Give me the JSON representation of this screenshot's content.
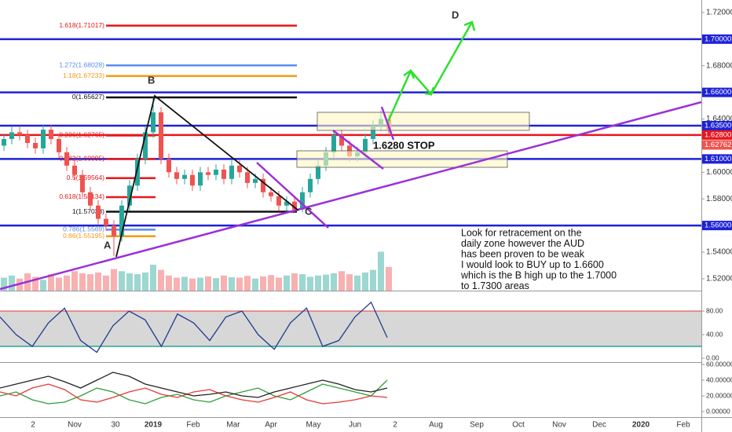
{
  "chart_data": {
    "type": "candlestick",
    "open": [
      1.62,
      1.625,
      1.63,
      1.628,
      1.622,
      1.618,
      1.632,
      1.625,
      1.615,
      1.605,
      1.598,
      1.585,
      1.575,
      1.565,
      1.56,
      1.552,
      1.575,
      1.59,
      1.61,
      1.63,
      1.645,
      1.61,
      1.6,
      1.595,
      1.598,
      1.59,
      1.6,
      1.598,
      1.602,
      1.595,
      1.605,
      1.6,
      1.592,
      1.595,
      1.585,
      1.582,
      1.575,
      1.578,
      1.572,
      1.585,
      1.595,
      1.605,
      1.615,
      1.628,
      1.62,
      1.612,
      1.615,
      1.625,
      1.635,
      1.64
    ],
    "high": [
      1.629,
      1.634,
      1.634,
      1.632,
      1.626,
      1.636,
      1.636,
      1.629,
      1.619,
      1.609,
      1.602,
      1.589,
      1.579,
      1.569,
      1.564,
      1.579,
      1.594,
      1.614,
      1.634,
      1.656,
      1.649,
      1.614,
      1.604,
      1.602,
      1.602,
      1.604,
      1.604,
      1.606,
      1.606,
      1.609,
      1.609,
      1.604,
      1.599,
      1.599,
      1.589,
      1.586,
      1.582,
      1.582,
      1.589,
      1.599,
      1.609,
      1.619,
      1.632,
      1.632,
      1.624,
      1.619,
      1.629,
      1.639,
      1.646,
      1.644
    ],
    "low": [
      1.616,
      1.621,
      1.624,
      1.618,
      1.614,
      1.614,
      1.621,
      1.611,
      1.601,
      1.594,
      1.581,
      1.571,
      1.561,
      1.556,
      1.537,
      1.548,
      1.571,
      1.586,
      1.606,
      1.626,
      1.606,
      1.596,
      1.591,
      1.591,
      1.586,
      1.586,
      1.594,
      1.594,
      1.591,
      1.591,
      1.596,
      1.588,
      1.588,
      1.581,
      1.578,
      1.571,
      1.571,
      1.57,
      1.57,
      1.581,
      1.591,
      1.601,
      1.611,
      1.616,
      1.608,
      1.608,
      1.611,
      1.621,
      1.631,
      1.628
    ],
    "close": [
      1.625,
      1.63,
      1.628,
      1.622,
      1.618,
      1.632,
      1.625,
      1.615,
      1.605,
      1.598,
      1.585,
      1.575,
      1.565,
      1.56,
      1.552,
      1.575,
      1.59,
      1.61,
      1.63,
      1.645,
      1.61,
      1.6,
      1.595,
      1.598,
      1.59,
      1.6,
      1.598,
      1.602,
      1.595,
      1.605,
      1.6,
      1.592,
      1.595,
      1.585,
      1.582,
      1.575,
      1.578,
      1.572,
      1.585,
      1.595,
      1.605,
      1.615,
      1.628,
      1.62,
      1.612,
      1.615,
      1.625,
      1.635,
      1.64,
      1.632
    ],
    "volume": [
      30,
      35,
      28,
      40,
      32,
      25,
      38,
      30,
      35,
      45,
      40,
      38,
      42,
      35,
      50,
      45,
      40,
      38,
      42,
      60,
      48,
      35,
      30,
      32,
      28,
      30,
      33,
      29,
      35,
      31,
      30,
      34,
      28,
      33,
      36,
      30,
      35,
      40,
      38,
      32,
      35,
      37,
      40,
      45,
      38,
      35,
      42,
      48,
      90,
      55
    ],
    "ylim": [
      1.5111,
      1.7294
    ],
    "yticks": [
      {
        "value": 1.72,
        "label": "1.72000"
      },
      {
        "value": 1.68,
        "label": "1.68000"
      },
      {
        "value": 1.64,
        "label": "1.64000"
      },
      {
        "value": 1.6,
        "label": "1.60000"
      },
      {
        "value": 1.58,
        "label": "1.58000"
      },
      {
        "value": 1.54,
        "label": "1.54000"
      },
      {
        "value": 1.52,
        "label": "1.52000"
      }
    ],
    "levels": [
      {
        "value": 1.7,
        "label": "1.70000",
        "color": "#1e22d6"
      },
      {
        "value": 1.66,
        "label": "1.66000",
        "color": "#1e22d6"
      },
      {
        "value": 1.635,
        "label": "1.63500",
        "color": "#1e22d6"
      },
      {
        "value": 1.628,
        "label": "1.62800",
        "color": "#e8151b"
      },
      {
        "value": 1.61,
        "label": "1.61000",
        "color": "#1e22d6"
      },
      {
        "value": 1.56,
        "label": "1.56000",
        "color": "#1e22d6"
      }
    ],
    "last_price": {
      "value": 1.62762,
      "label": "1.62762",
      "color": "#ef5350"
    },
    "fib_levels": [
      {
        "value": 1.71017,
        "label": "1.618(1.71017)",
        "color": "#e8151b"
      },
      {
        "value": 1.68028,
        "label": "1.272(1.68028)",
        "color": "#5b8def"
      },
      {
        "value": 1.67233,
        "label": "1.18(1.67233)",
        "color": "#f59a12"
      },
      {
        "value": 1.65627,
        "label": "0(1.65627)",
        "color": "#111111"
      },
      {
        "value": 1.62765,
        "label": "0.236(1.62765)",
        "color": "#e8151b"
      },
      {
        "value": 1.60995,
        "label": "0.382(1.60995)",
        "color": "#e8151b"
      },
      {
        "value": 1.59564,
        "label": "0.5(1.59564)",
        "color": "#e8151b"
      },
      {
        "value": 1.58134,
        "label": "0.618(1.58134)",
        "color": "#e8151b"
      },
      {
        "value": 1.57038,
        "label": "1(1.57038)",
        "color": "#111111"
      },
      {
        "value": 1.5569,
        "label": "0.786(1.5569)",
        "color": "#5b8def"
      },
      {
        "value": 1.55195,
        "label": "0.86(1.55195)",
        "color": "#f59a12"
      }
    ],
    "x_labels": [
      "2",
      "Nov",
      "30",
      "2019",
      "Feb",
      "Mar",
      "Apr",
      "May",
      "Jun",
      "2",
      "Aug",
      "Sep",
      "Oct",
      "Nov",
      "Dec",
      "2020",
      "Feb"
    ],
    "annotations": [
      "A",
      "B",
      "C",
      "D",
      "1.6280 STOP"
    ],
    "note": [
      "Look for retracement on the",
      "daily zone however the AUD",
      "has been proven to be weak",
      "I would look to BUY up to 1.6600",
      "which is the B high up to the 1.7000",
      "to 1.7300 areas"
    ],
    "stoch": {
      "values": [
        70,
        40,
        20,
        60,
        85,
        30,
        10,
        55,
        80,
        65,
        20,
        75,
        60,
        30,
        70,
        80,
        40,
        15,
        60,
        85,
        20,
        30,
        70,
        95,
        35
      ],
      "ylim": [
        -5.3,
        110.7
      ],
      "yticks": [
        {
          "value": 80,
          "label": "80.00"
        },
        {
          "value": 40,
          "label": "40.00"
        },
        {
          "value": 0,
          "label": "0.00"
        }
      ],
      "band": [
        20,
        80
      ]
    },
    "dmi": {
      "series": [
        {
          "color": "#2e9e3a",
          "values": [
            20,
            25,
            15,
            10,
            12,
            20,
            30,
            25,
            15,
            10,
            18,
            22,
            15,
            12,
            20,
            25,
            30,
            20,
            15,
            25,
            35,
            30,
            25,
            20,
            40
          ]
        },
        {
          "color": "#e53935",
          "values": [
            25,
            20,
            30,
            35,
            28,
            15,
            12,
            18,
            25,
            30,
            22,
            18,
            25,
            28,
            20,
            15,
            12,
            18,
            25,
            15,
            10,
            12,
            15,
            20,
            18
          ]
        },
        {
          "color": "#222222",
          "values": [
            30,
            35,
            40,
            45,
            38,
            30,
            40,
            50,
            45,
            35,
            30,
            25,
            20,
            22,
            25,
            20,
            18,
            25,
            30,
            35,
            40,
            35,
            28,
            25,
            30
          ]
        }
      ],
      "ylim": [
        -11,
        62
      ],
      "yticks": [
        {
          "value": 60,
          "label": "60.00000"
        },
        {
          "value": 40,
          "label": "40.00000"
        },
        {
          "value": 20,
          "label": "20.00000"
        },
        {
          "value": 0,
          "label": "0.00000"
        }
      ]
    }
  }
}
